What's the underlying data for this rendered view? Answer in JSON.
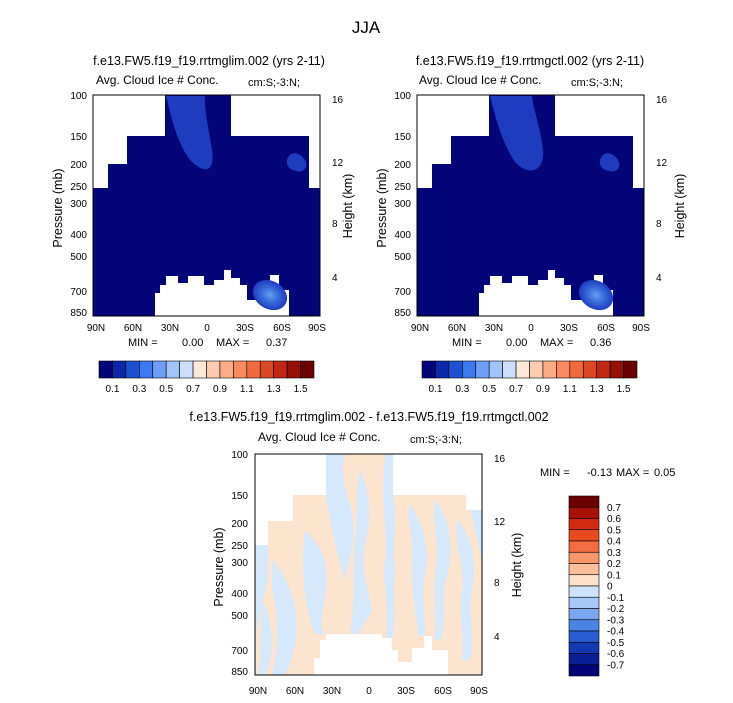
{
  "figure_title": "JJA",
  "chart_data": [
    {
      "type": "heatmap",
      "title": "f.e13.FW5.f19_f19.rrtmglim.002 (yrs 2-11)",
      "subtitle_left": "Avg. Cloud Ice # Conc.",
      "subtitle_right": "cm:S;-3:N;",
      "xlabel": "",
      "ylabel": "Pressure (mb)",
      "ylabel_right": "Height (km)",
      "x_ticks": [
        "90N",
        "60N",
        "30N",
        "0",
        "30S",
        "60S",
        "90S"
      ],
      "y_ticks": [
        "100",
        "150",
        "200",
        "250",
        "300",
        "400",
        "500",
        "700",
        "850"
      ],
      "y_right_ticks": [
        "16",
        "12",
        "8",
        "4"
      ],
      "stats": {
        "min_label": "MIN =",
        "min": "0.00",
        "max_label": "MAX =",
        "max": "0.37"
      },
      "background_value": 0.05,
      "features": [
        {
          "region": "upper-tropical-mid",
          "value": 0.12
        },
        {
          "region": "upper-right",
          "value": 0.12
        },
        {
          "region": "lower-right-core",
          "value": 0.3
        }
      ]
    },
    {
      "type": "heatmap",
      "title": "f.e13.FW5.f19_f19.rrtmgctl.002 (yrs 2-11)",
      "subtitle_left": "Avg. Cloud Ice # Conc.",
      "subtitle_right": "cm:S;-3:N;",
      "xlabel": "",
      "ylabel": "Pressure (mb)",
      "ylabel_right": "Height (km)",
      "x_ticks": [
        "90N",
        "60N",
        "30N",
        "0",
        "30S",
        "60S",
        "90S"
      ],
      "y_ticks": [
        "100",
        "150",
        "200",
        "250",
        "300",
        "400",
        "500",
        "700",
        "850"
      ],
      "y_right_ticks": [
        "16",
        "12",
        "8",
        "4"
      ],
      "stats": {
        "min_label": "MIN =",
        "min": "0.00",
        "max_label": "MAX =",
        "max": "0.36"
      },
      "background_value": 0.05,
      "features": [
        {
          "region": "upper-tropical-mid",
          "value": 0.12
        },
        {
          "region": "upper-right",
          "value": 0.12
        },
        {
          "region": "lower-right-core",
          "value": 0.3
        }
      ]
    },
    {
      "type": "heatmap",
      "title": "f.e13.FW5.f19_f19.rrtmglim.002 - f.e13.FW5.f19_f19.rrtmgctl.002",
      "subtitle_left": "Avg. Cloud Ice # Conc.",
      "subtitle_right": "cm:S;-3:N;",
      "xlabel": "",
      "ylabel": "Pressure (mb)",
      "ylabel_right": "Height (km)",
      "x_ticks": [
        "90N",
        "60N",
        "30N",
        "0",
        "30S",
        "60S",
        "90S"
      ],
      "y_ticks": [
        "100",
        "150",
        "200",
        "250",
        "300",
        "400",
        "500",
        "700",
        "850"
      ],
      "y_right_ticks": [
        "16",
        "12",
        "8",
        "4"
      ],
      "stats": {
        "min_label": "MIN =",
        "min": "-0.13",
        "max_label": "MAX =",
        "max": "0.05"
      },
      "values_range": [
        -0.13,
        0.05
      ]
    }
  ],
  "colorbar_top": {
    "labels": [
      "0.1",
      "0.3",
      "0.5",
      "0.7",
      "0.9",
      "1.1",
      "1.3",
      "1.5"
    ],
    "colors": [
      "#05057a",
      "#0a28a8",
      "#1e50d2",
      "#3c78f0",
      "#6e9ef5",
      "#a0c3fa",
      "#cbdffc",
      "#fde7d6",
      "#fdcbb0",
      "#fcab86",
      "#fa8a5f",
      "#f06a3e",
      "#dc4824",
      "#c02814",
      "#961006",
      "#6a0000"
    ]
  },
  "colorbar_diff": {
    "labels": [
      "0.7",
      "0.6",
      "0.5",
      "0.4",
      "0.3",
      "0.2",
      "0.1",
      "0",
      "-0.1",
      "-0.2",
      "-0.3",
      "-0.4",
      "-0.5",
      "-0.6",
      "-0.7"
    ],
    "colors": [
      "#6a0000",
      "#a81005",
      "#d02a10",
      "#e84a1e",
      "#f36d40",
      "#f9966a",
      "#fcbf9b",
      "#fde3cc",
      "#cfe3fa",
      "#a8c8f5",
      "#7aa8f0",
      "#4a82e6",
      "#2a5cd2",
      "#1438b4",
      "#0a1e96",
      "#05057a"
    ]
  },
  "colors": {
    "deep_blue": "#05057a",
    "light_blue_contour": "#1e3cbf",
    "diff_blue": "#d6e8fb",
    "diff_peach": "#fde4cf"
  }
}
